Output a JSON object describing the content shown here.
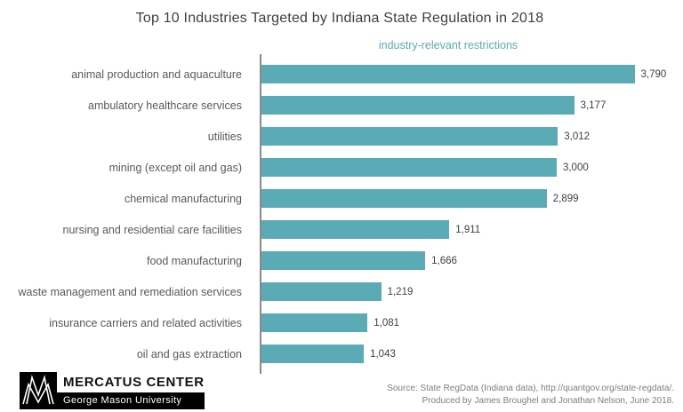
{
  "title": "Top 10 Industries Targeted by Indiana State Regulation in 2018",
  "legend": "industry-relevant restrictions",
  "colors": {
    "bar": "#5aabb5",
    "legend_text": "#5aabb5",
    "axis_line": "#8a8a8a"
  },
  "chart_data": {
    "type": "bar",
    "orientation": "horizontal",
    "title": "Top 10 Industries Targeted by Indiana State Regulation in 2018",
    "series_label": "industry-relevant restrictions",
    "legend_position": "top",
    "grid": false,
    "xlim": [
      0,
      3790
    ],
    "categories": [
      "animal production and aquaculture",
      "ambulatory healthcare services",
      "utilities",
      "mining (except oil and gas)",
      "chemical manufacturing",
      "nursing and residential care facilities",
      "food manufacturing",
      "waste management and remediation services",
      "insurance carriers and related activities",
      "oil and gas extraction"
    ],
    "values": [
      3790,
      3177,
      3012,
      3000,
      2899,
      1911,
      1666,
      1219,
      1081,
      1043
    ],
    "value_labels": [
      "3,790",
      "3,177",
      "3,012",
      "3,000",
      "2,899",
      "1,911",
      "1,666",
      "1,219",
      "1,081",
      "1,043"
    ]
  },
  "footer": {
    "brand_title": "MERCATUS CENTER",
    "brand_subtitle": "George Mason University",
    "source_line1": "Source: State RegData (Indiana data), http://quantgov.org/state-regdata/.",
    "source_line2": "Produced by James Broughel and Jonathan Nelson, June 2018."
  }
}
